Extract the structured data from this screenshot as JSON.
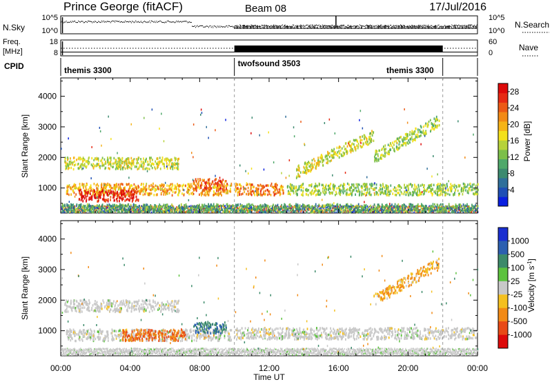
{
  "header": {
    "station": "Prince George (fitACF)",
    "beam": "Beam 08",
    "date": "17/Jul/2016"
  },
  "summary_panels": {
    "nsky_label": "N.Sky",
    "nsky_ticks": [
      "10^5",
      "10^0"
    ],
    "nsearch_label": "N.Search",
    "nsearch_ticks": [
      "10^5",
      "10^0"
    ],
    "freq_label_1": "Freq.",
    "freq_label_2": "[MHz]",
    "freq_ticks": [
      "18",
      "8"
    ],
    "nave_label": "Nave",
    "nave_ticks": [
      "60",
      "0"
    ],
    "cpid_label": "CPID",
    "cpid_segments": [
      {
        "label": "themis 3300",
        "start_hour": 0,
        "end_hour": 10
      },
      {
        "label": "twofsound 3503",
        "start_hour": 10,
        "end_hour": 22
      },
      {
        "label": "themis 3300",
        "start_hour": 22,
        "end_hour": 24
      }
    ]
  },
  "chart_data": [
    {
      "type": "heatmap",
      "title": "",
      "xlabel": "",
      "ylabel": "Slant Range [km]",
      "x_ticks": [
        "00:00",
        "04:00",
        "08:00",
        "12:00",
        "16:00",
        "20:00",
        "00:00"
      ],
      "xlim_hours": [
        0,
        24
      ],
      "ylim": [
        180,
        4600
      ],
      "y_ticks": [
        1000,
        2000,
        3000,
        4000
      ],
      "colorbar": {
        "label": "Power [dB]",
        "ticks": [
          4,
          8,
          12,
          16,
          20,
          24,
          28
        ],
        "range": [
          0,
          30
        ],
        "colors": [
          "#0a1fe0",
          "#1f4fb5",
          "#2f6f9a",
          "#3c8a6f",
          "#4fa86a",
          "#7cbf4a",
          "#b6d23a",
          "#f4e11c",
          "#f6b418",
          "#f28a16",
          "#ec5a16",
          "#e62a14",
          "#dd0a0a"
        ]
      },
      "features": [
        {
          "name": "near-range band",
          "start_hour": 0.0,
          "end_hour": 24.0,
          "range_km": 280,
          "value_db": 10
        },
        {
          "name": "1000 km band (night)",
          "start_hour": 0.3,
          "end_hour": 9.8,
          "range_km": 950,
          "value_db": 20
        },
        {
          "name": "750 km patch",
          "start_hour": 1.0,
          "end_hour": 4.5,
          "range_km": 750,
          "value_db": 28
        },
        {
          "name": "1800 km band",
          "start_hour": 0.2,
          "end_hour": 6.8,
          "range_km": 1800,
          "value_db": 16
        },
        {
          "name": "morning burst",
          "start_hour": 7.6,
          "end_hour": 9.5,
          "range_km": 1100,
          "value_db": 24
        },
        {
          "name": "midday 1000 km band",
          "start_hour": 10.0,
          "end_hour": 12.8,
          "range_km": 950,
          "value_db": 22
        },
        {
          "name": "afternoon 1000 km band",
          "start_hour": 13.0,
          "end_hour": 24.0,
          "range_km": 950,
          "value_db": 14
        },
        {
          "name": "rising arc",
          "start_hour": 13.5,
          "end_hour": 18.0,
          "range_km": 2200,
          "value_db": 16
        },
        {
          "name": "evening arc",
          "start_hour": 18.0,
          "end_hour": 21.8,
          "range_km": 2700,
          "value_db": 14
        }
      ]
    },
    {
      "type": "heatmap",
      "title": "",
      "xlabel": "Time UT",
      "ylabel": "Slant Range [km]",
      "x_ticks": [
        "00:00",
        "04:00",
        "08:00",
        "12:00",
        "16:00",
        "20:00",
        "00:00"
      ],
      "xlim_hours": [
        0,
        24
      ],
      "ylim": [
        180,
        4600
      ],
      "y_ticks": [
        1000,
        2000,
        3000,
        4000
      ],
      "colorbar": {
        "label": "Velocity [m s^-1]",
        "ticks": [
          "1000",
          "500",
          "100",
          "25",
          "-25",
          "-100",
          "-500",
          "-1000"
        ],
        "colors": [
          "#1a2fd0",
          "#2c5fb0",
          "#3c8a6a",
          "#5cc23e",
          "#c8c8c8",
          "#f4c020",
          "#f28a16",
          "#e84a16",
          "#dd0a0a"
        ]
      },
      "features": [
        {
          "name": "ground scatter 1800 km",
          "start_hour": 0.2,
          "end_hour": 6.8,
          "range_km": 1800,
          "velocity": 0
        },
        {
          "name": "ground scatter 850 km",
          "start_hour": 0.3,
          "end_hour": 9.8,
          "range_km": 850,
          "velocity": 0
        },
        {
          "name": "westward flow patch",
          "start_hour": 3.5,
          "end_hour": 7.2,
          "range_km": 850,
          "velocity": -500
        },
        {
          "name": "morning burst",
          "start_hour": 7.6,
          "end_hour": 9.5,
          "range_km": 1100,
          "velocity": 500
        },
        {
          "name": "afternoon ground scatter",
          "start_hour": 10.0,
          "end_hour": 24.0,
          "range_km": 900,
          "velocity": 0
        },
        {
          "name": "evening arc",
          "start_hour": 18.0,
          "end_hour": 21.8,
          "range_km": 2700,
          "velocity": -100
        }
      ]
    }
  ]
}
